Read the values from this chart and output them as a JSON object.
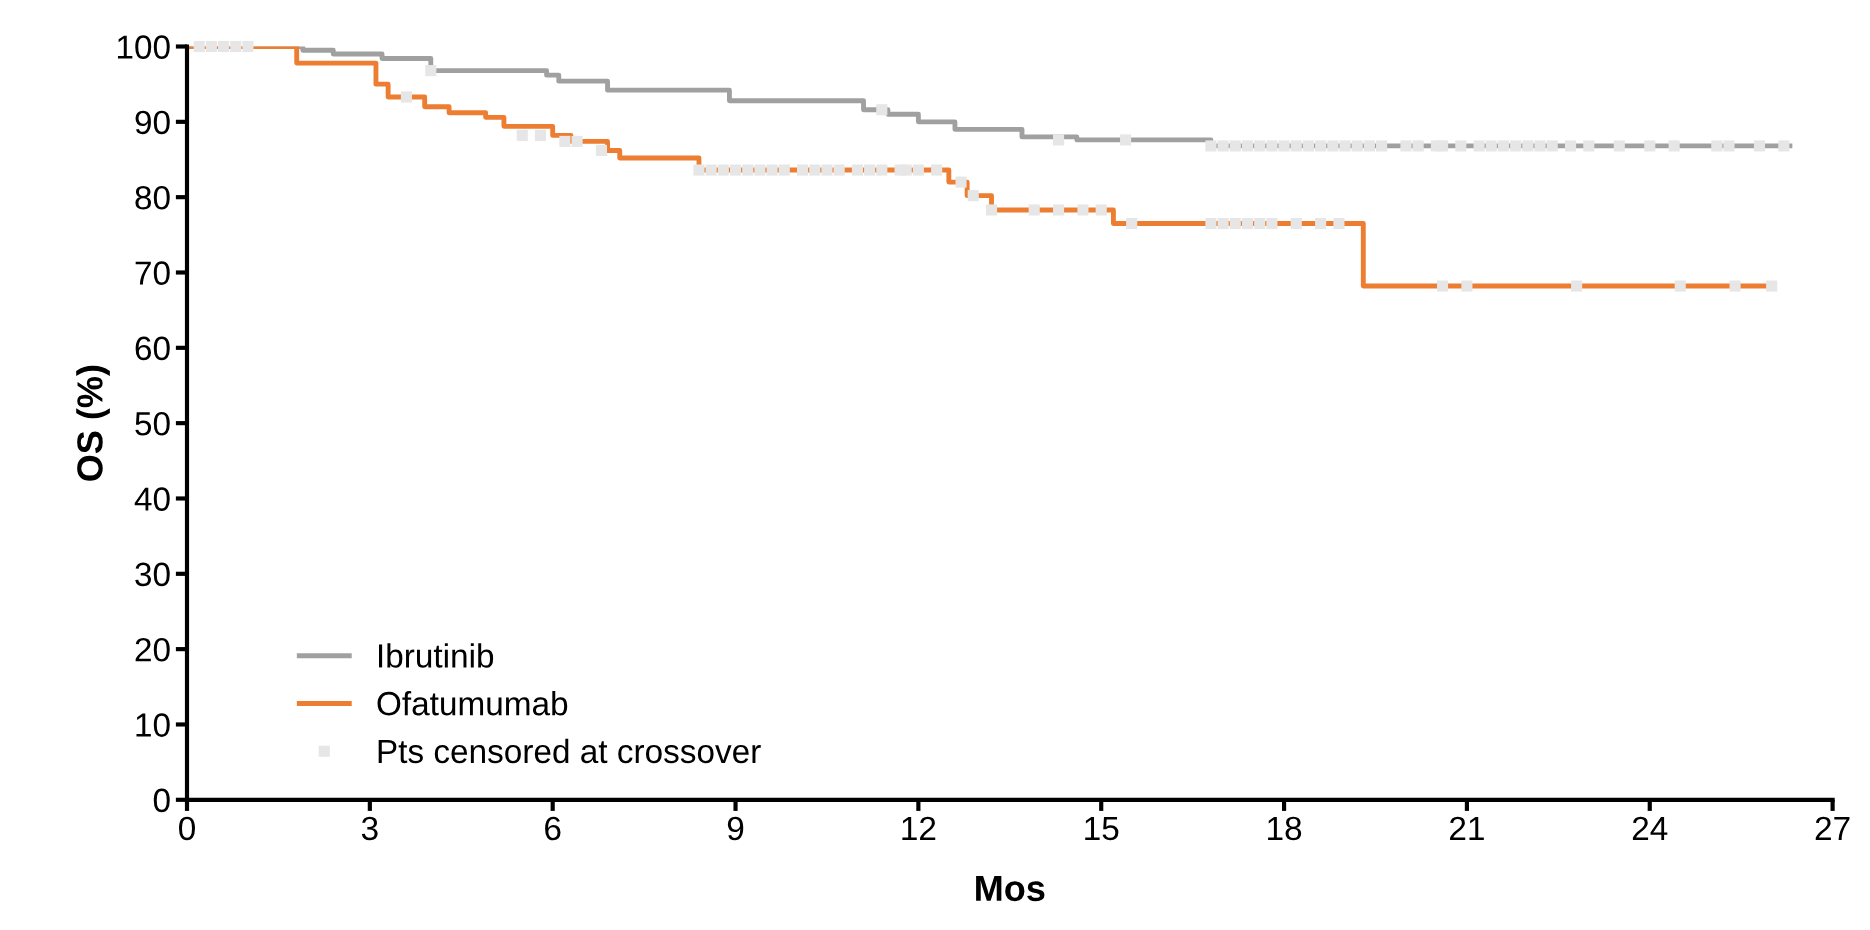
{
  "chart_data": {
    "type": "step",
    "xlabel": "Mos",
    "ylabel": "OS (%)",
    "xlim": [
      0,
      27
    ],
    "xticks": [
      0,
      3,
      6,
      9,
      12,
      15,
      18,
      21,
      24,
      27
    ],
    "ylim": [
      0,
      100
    ],
    "yticks": [
      0,
      10,
      20,
      30,
      40,
      50,
      60,
      70,
      80,
      90,
      100
    ],
    "grid": false,
    "legend": "bottom left",
    "series": [
      {
        "name": "Ibrutinib",
        "color": "#a0a0a0",
        "x": [
          0,
          1.9,
          2.4,
          3.2,
          4.0,
          5.9,
          6.1,
          6.9,
          8.9,
          11.1,
          11.5,
          12.0,
          12.6,
          13.7,
          14.6,
          16.8,
          26.3
        ],
        "values": [
          100,
          99.5,
          99,
          98.4,
          96.8,
          96.2,
          95.4,
          94.2,
          92.8,
          91.6,
          91.0,
          90.0,
          89.0,
          88.0,
          87.6,
          86.8,
          86.8
        ]
      },
      {
        "name": "Ofatumumab",
        "color": "#ed7d31",
        "x": [
          0,
          1.8,
          3.1,
          3.3,
          3.9,
          4.3,
          4.9,
          5.2,
          6.0,
          6.3,
          6.9,
          7.1,
          8.4,
          12.5,
          12.8,
          13.2,
          15.2,
          19.3,
          26.0
        ],
        "values": [
          100,
          97.8,
          95,
          93.3,
          92,
          91.2,
          90.6,
          89.4,
          88.2,
          87.4,
          86.2,
          85.2,
          83.6,
          82,
          80.2,
          78.3,
          76.5,
          68.2,
          68.2
        ]
      },
      {
        "name": "Pts censored at crossover",
        "type": "scatter",
        "marker": "square",
        "color": "#e6e6e6",
        "x": [
          0.2,
          0.4,
          0.6,
          0.8,
          1.0,
          4.0,
          11.4,
          14.3,
          15.4,
          16.8,
          17.0,
          17.2,
          17.4,
          17.6,
          17.8,
          18.0,
          18.2,
          18.4,
          18.6,
          18.8,
          19.0,
          19.2,
          19.4,
          19.6,
          20.0,
          20.2,
          20.5,
          20.6,
          20.9,
          21.2,
          21.4,
          21.6,
          21.8,
          22.0,
          22.2,
          22.4,
          22.7,
          23.0,
          23.5,
          24.0,
          24.4,
          25.1,
          25.3,
          25.8,
          26.2,
          3.6,
          5.5,
          5.8,
          6.2,
          6.4,
          6.8,
          8.4,
          8.6,
          8.8,
          9.0,
          9.2,
          9.4,
          9.6,
          9.8,
          10.1,
          10.3,
          10.5,
          10.7,
          11.0,
          11.2,
          11.4,
          11.7,
          11.8,
          12.0,
          12.3,
          12.7,
          12.9,
          13.2,
          13.9,
          14.3,
          14.7,
          15.0,
          15.5,
          16.8,
          17.0,
          17.2,
          17.4,
          17.6,
          17.8,
          18.2,
          18.6,
          18.9,
          20.6,
          21.0,
          22.8,
          24.5,
          25.4,
          26.0
        ],
        "values": [
          100,
          100,
          100,
          100,
          100,
          96.8,
          91.6,
          87.6,
          87.6,
          86.8,
          86.8,
          86.8,
          86.8,
          86.8,
          86.8,
          86.8,
          86.8,
          86.8,
          86.8,
          86.8,
          86.8,
          86.8,
          86.8,
          86.8,
          86.8,
          86.8,
          86.8,
          86.8,
          86.8,
          86.8,
          86.8,
          86.8,
          86.8,
          86.8,
          86.8,
          86.8,
          86.8,
          86.8,
          86.8,
          86.8,
          86.8,
          86.8,
          86.8,
          86.8,
          86.8,
          93.3,
          88.2,
          88.2,
          87.4,
          87.4,
          86.2,
          83.6,
          83.6,
          83.6,
          83.6,
          83.6,
          83.6,
          83.6,
          83.6,
          83.6,
          83.6,
          83.6,
          83.6,
          83.6,
          83.6,
          83.6,
          83.6,
          83.6,
          83.6,
          83.6,
          82,
          80.2,
          78.3,
          78.3,
          78.3,
          78.3,
          78.3,
          76.5,
          76.5,
          76.5,
          76.5,
          76.5,
          76.5,
          76.5,
          76.5,
          76.5,
          76.5,
          68.2,
          68.2,
          68.2,
          68.2,
          68.2,
          68.2
        ]
      }
    ]
  }
}
